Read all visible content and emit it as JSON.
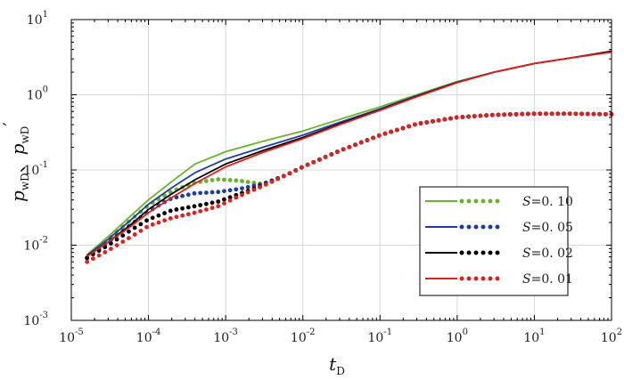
{
  "chart_data": {
    "type": "line",
    "title": "",
    "xlabel": "t_D",
    "xlabel_main": "t",
    "xlabel_sub": "D",
    "ylabel": "p_wD、p_wD′",
    "ylabel_main1": "p",
    "ylabel_sub1": "wD",
    "ylabel_sep": "、",
    "ylabel_main2": "p",
    "ylabel_sub2": "wD",
    "ylabel_prime": "′",
    "x_scale": "log",
    "y_scale": "log",
    "xlim": [
      1e-05,
      100
    ],
    "ylim": [
      0.001,
      10
    ],
    "x_tick_exponents": [
      "-5",
      "-4",
      "-3",
      "-2",
      "-1",
      "0",
      "1",
      "2"
    ],
    "y_tick_exponents": [
      "-3",
      "-2",
      "-1",
      "0",
      "1"
    ],
    "tick_base": "10",
    "grid": true,
    "legend_position": "right",
    "legend_prefix": "S",
    "series": [
      {
        "name": "S=0.10",
        "value_label": "=0. 10",
        "color": "#6ab22e",
        "pressure": {
          "x": [
            1.6e-05,
            3e-05,
            6e-05,
            0.0001,
            0.0002,
            0.0004,
            0.001,
            0.003,
            0.01,
            0.03,
            0.1,
            0.3,
            1,
            3,
            10,
            30,
            100
          ],
          "y": [
            0.0075,
            0.013,
            0.025,
            0.04,
            0.07,
            0.12,
            0.175,
            0.24,
            0.33,
            0.47,
            0.69,
            1.0,
            1.5,
            2.0,
            2.6,
            3.1,
            3.7
          ]
        },
        "derivative": {
          "x": [
            1.6e-05,
            3e-05,
            6e-05,
            0.0001,
            0.0002,
            0.0004,
            0.0008,
            0.0015,
            0.003,
            0.006,
            0.01,
            0.03,
            0.1,
            0.3,
            1,
            3,
            10,
            30,
            100
          ],
          "y": [
            0.0068,
            0.012,
            0.022,
            0.034,
            0.052,
            0.068,
            0.075,
            0.072,
            0.065,
            0.085,
            0.11,
            0.18,
            0.29,
            0.41,
            0.5,
            0.54,
            0.56,
            0.56,
            0.55
          ]
        }
      },
      {
        "name": "S=0.05",
        "value_label": "=0. 05",
        "color": "#1f3f9f",
        "pressure": {
          "x": [
            1.6e-05,
            3e-05,
            6e-05,
            0.0001,
            0.0002,
            0.0004,
            0.001,
            0.003,
            0.01,
            0.03,
            0.1,
            0.3,
            1,
            3,
            10,
            30,
            100
          ],
          "y": [
            0.0073,
            0.012,
            0.022,
            0.035,
            0.058,
            0.092,
            0.14,
            0.2,
            0.29,
            0.43,
            0.65,
            0.97,
            1.47,
            2.0,
            2.6,
            3.1,
            3.7
          ]
        },
        "derivative": {
          "x": [
            1.6e-05,
            3e-05,
            6e-05,
            0.0001,
            0.00015,
            0.0002,
            0.0004,
            0.0008,
            0.0015,
            0.003,
            0.006,
            0.01,
            0.03,
            0.1,
            0.3,
            1,
            3,
            10,
            30,
            100
          ],
          "y": [
            0.0067,
            0.011,
            0.019,
            0.028,
            0.036,
            0.042,
            0.049,
            0.051,
            0.056,
            0.065,
            0.085,
            0.11,
            0.18,
            0.29,
            0.41,
            0.5,
            0.54,
            0.56,
            0.56,
            0.55
          ]
        }
      },
      {
        "name": "S=0.02",
        "value_label": "=0. 02",
        "color": "#000000",
        "pressure": {
          "x": [
            1.6e-05,
            3e-05,
            6e-05,
            0.0001,
            0.0002,
            0.0004,
            0.001,
            0.003,
            0.01,
            0.03,
            0.1,
            0.3,
            1,
            3,
            10,
            30,
            100
          ],
          "y": [
            0.0072,
            0.011,
            0.019,
            0.03,
            0.048,
            0.074,
            0.12,
            0.18,
            0.27,
            0.41,
            0.63,
            0.95,
            1.46,
            2.0,
            2.6,
            3.1,
            3.8
          ]
        },
        "derivative": {
          "x": [
            1.6e-05,
            3e-05,
            6e-05,
            0.0001,
            0.0002,
            0.0004,
            0.0008,
            0.0015,
            0.003,
            0.006,
            0.01,
            0.03,
            0.1,
            0.3,
            1,
            3,
            10,
            30,
            100
          ],
          "y": [
            0.0068,
            0.01,
            0.016,
            0.022,
            0.029,
            0.033,
            0.038,
            0.048,
            0.062,
            0.085,
            0.11,
            0.18,
            0.29,
            0.41,
            0.5,
            0.54,
            0.56,
            0.56,
            0.55
          ]
        }
      },
      {
        "name": "S=0.01",
        "value_label": "=0. 01",
        "color": "#e02020",
        "pressure": {
          "x": [
            1.6e-05,
            3e-05,
            6e-05,
            0.0001,
            0.0002,
            0.0004,
            0.001,
            0.003,
            0.01,
            0.03,
            0.1,
            0.3,
            1,
            3,
            10,
            30,
            100
          ],
          "y": [
            0.0071,
            0.011,
            0.018,
            0.027,
            0.043,
            0.066,
            0.11,
            0.17,
            0.26,
            0.4,
            0.62,
            0.94,
            1.45,
            2.0,
            2.6,
            3.1,
            3.7
          ]
        },
        "derivative": {
          "x": [
            1.6e-05,
            3e-05,
            6e-05,
            0.0001,
            0.0002,
            0.0004,
            0.0008,
            0.0015,
            0.003,
            0.006,
            0.01,
            0.03,
            0.1,
            0.3,
            1,
            3,
            10,
            30,
            100
          ],
          "y": [
            0.006,
            0.0085,
            0.013,
            0.018,
            0.023,
            0.027,
            0.033,
            0.045,
            0.061,
            0.085,
            0.11,
            0.18,
            0.29,
            0.41,
            0.5,
            0.54,
            0.56,
            0.56,
            0.55
          ]
        }
      }
    ]
  }
}
